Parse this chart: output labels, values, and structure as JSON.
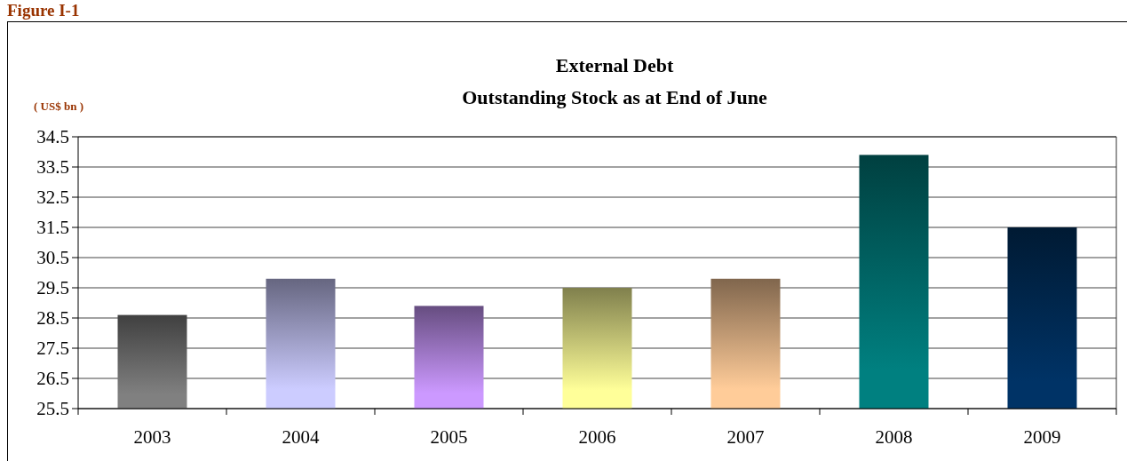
{
  "chart_data": {
    "type": "bar",
    "title": "External Debt",
    "subtitle": "Outstanding Stock as at End of June",
    "ylabel": "( US$ bn )",
    "annotations": [
      "Figure I-1"
    ],
    "categories": [
      "2003",
      "2004",
      "2005",
      "2006",
      "2007",
      "2008",
      "2009"
    ],
    "values": [
      28.6,
      29.8,
      28.9,
      29.5,
      29.8,
      33.9,
      31.5
    ],
    "colors": [
      "#808080",
      "#ccccff",
      "#cc99ff",
      "#ffff99",
      "#ffcc99",
      "#008080",
      "#003366"
    ],
    "ylim": [
      25.5,
      34.5
    ],
    "yticks": [
      25.5,
      26.5,
      27.5,
      28.5,
      29.5,
      30.5,
      31.5,
      32.5,
      33.5,
      34.5
    ],
    "grid": "y"
  }
}
